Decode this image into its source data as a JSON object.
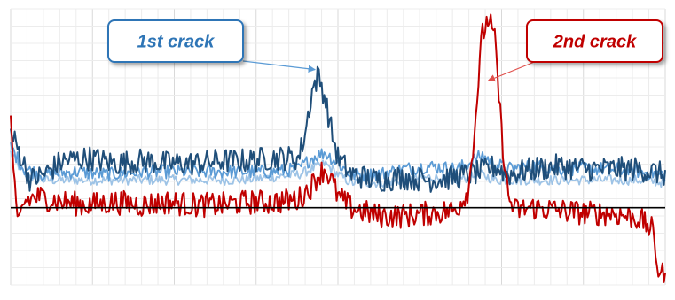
{
  "chart_data": {
    "type": "line",
    "title": "",
    "xlabel": "",
    "ylabel": "",
    "x_range": [
      0,
      100
    ],
    "y_range": [
      0,
      100
    ],
    "grid": true,
    "legend": "none",
    "reference_line_y": 28,
    "annotations": [
      {
        "text": "1st crack",
        "color": "#2e75b6",
        "x": 46.5,
        "y": 78
      },
      {
        "text": "2nd crack",
        "color": "#c00000",
        "x": 73.5,
        "y": 98
      }
    ],
    "series": [
      {
        "color": "#1f4e79",
        "points": [
          [
            0,
            55
          ],
          [
            1,
            50
          ],
          [
            2,
            44
          ],
          [
            3,
            38
          ],
          [
            5,
            40
          ],
          [
            8,
            45
          ],
          [
            12,
            46
          ],
          [
            16,
            44
          ],
          [
            20,
            45
          ],
          [
            24,
            44
          ],
          [
            28,
            44
          ],
          [
            32,
            45
          ],
          [
            36,
            45
          ],
          [
            40,
            46
          ],
          [
            44,
            46
          ],
          [
            45,
            55
          ],
          [
            46,
            70
          ],
          [
            47,
            76
          ],
          [
            48,
            68
          ],
          [
            49,
            56
          ],
          [
            50,
            46
          ],
          [
            52,
            40
          ],
          [
            56,
            38
          ],
          [
            60,
            39
          ],
          [
            64,
            38
          ],
          [
            68,
            39
          ],
          [
            70,
            40
          ],
          [
            72,
            41
          ],
          [
            74,
            43
          ],
          [
            76,
            40
          ],
          [
            80,
            42
          ],
          [
            84,
            43
          ],
          [
            88,
            42
          ],
          [
            92,
            42
          ],
          [
            96,
            42
          ],
          [
            100,
            40
          ]
        ]
      },
      {
        "color": "#5b9bd5",
        "points": [
          [
            0,
            50
          ],
          [
            1,
            46
          ],
          [
            2,
            42
          ],
          [
            5,
            40
          ],
          [
            10,
            41
          ],
          [
            15,
            40
          ],
          [
            20,
            41
          ],
          [
            25,
            41
          ],
          [
            30,
            41
          ],
          [
            35,
            41
          ],
          [
            40,
            41
          ],
          [
            44,
            42
          ],
          [
            46,
            46
          ],
          [
            48,
            48
          ],
          [
            50,
            44
          ],
          [
            52,
            40
          ],
          [
            56,
            40
          ],
          [
            60,
            42
          ],
          [
            64,
            43
          ],
          [
            68,
            42
          ],
          [
            70,
            44
          ],
          [
            72,
            47
          ],
          [
            74,
            44
          ],
          [
            76,
            42
          ],
          [
            80,
            43
          ],
          [
            84,
            42
          ],
          [
            88,
            42
          ],
          [
            92,
            42
          ],
          [
            96,
            41
          ],
          [
            100,
            40
          ]
        ]
      },
      {
        "color": "#9dc3e6",
        "points": [
          [
            0,
            48
          ],
          [
            2,
            40
          ],
          [
            5,
            38
          ],
          [
            10,
            38
          ],
          [
            15,
            38
          ],
          [
            20,
            38
          ],
          [
            25,
            38
          ],
          [
            30,
            38
          ],
          [
            35,
            38
          ],
          [
            40,
            39
          ],
          [
            44,
            40
          ],
          [
            46,
            42
          ],
          [
            48,
            44
          ],
          [
            50,
            40
          ],
          [
            52,
            37
          ],
          [
            56,
            37
          ],
          [
            60,
            38
          ],
          [
            64,
            39
          ],
          [
            68,
            38
          ],
          [
            72,
            40
          ],
          [
            74,
            38
          ],
          [
            76,
            38
          ],
          [
            80,
            38
          ],
          [
            84,
            38
          ],
          [
            88,
            38
          ],
          [
            92,
            38
          ],
          [
            96,
            38
          ],
          [
            100,
            37
          ]
        ]
      },
      {
        "color": "#c00000",
        "points": [
          [
            0,
            60
          ],
          [
            1,
            20
          ],
          [
            2,
            30
          ],
          [
            4,
            32
          ],
          [
            8,
            30
          ],
          [
            12,
            29
          ],
          [
            16,
            30
          ],
          [
            20,
            29
          ],
          [
            24,
            30
          ],
          [
            28,
            29
          ],
          [
            32,
            29
          ],
          [
            36,
            30
          ],
          [
            40,
            30
          ],
          [
            44,
            31
          ],
          [
            46,
            36
          ],
          [
            47,
            40
          ],
          [
            48,
            42
          ],
          [
            49,
            38
          ],
          [
            50,
            32
          ],
          [
            52,
            28
          ],
          [
            56,
            25
          ],
          [
            60,
            25
          ],
          [
            64,
            26
          ],
          [
            68,
            27
          ],
          [
            70,
            35
          ],
          [
            71,
            60
          ],
          [
            72,
            90
          ],
          [
            73,
            97
          ],
          [
            74,
            88
          ],
          [
            75,
            55
          ],
          [
            76,
            32
          ],
          [
            77,
            27
          ],
          [
            80,
            28
          ],
          [
            84,
            27
          ],
          [
            88,
            26
          ],
          [
            92,
            26
          ],
          [
            96,
            24
          ],
          [
            98,
            20
          ],
          [
            99,
            5
          ],
          [
            100,
            3
          ]
        ]
      }
    ]
  }
}
